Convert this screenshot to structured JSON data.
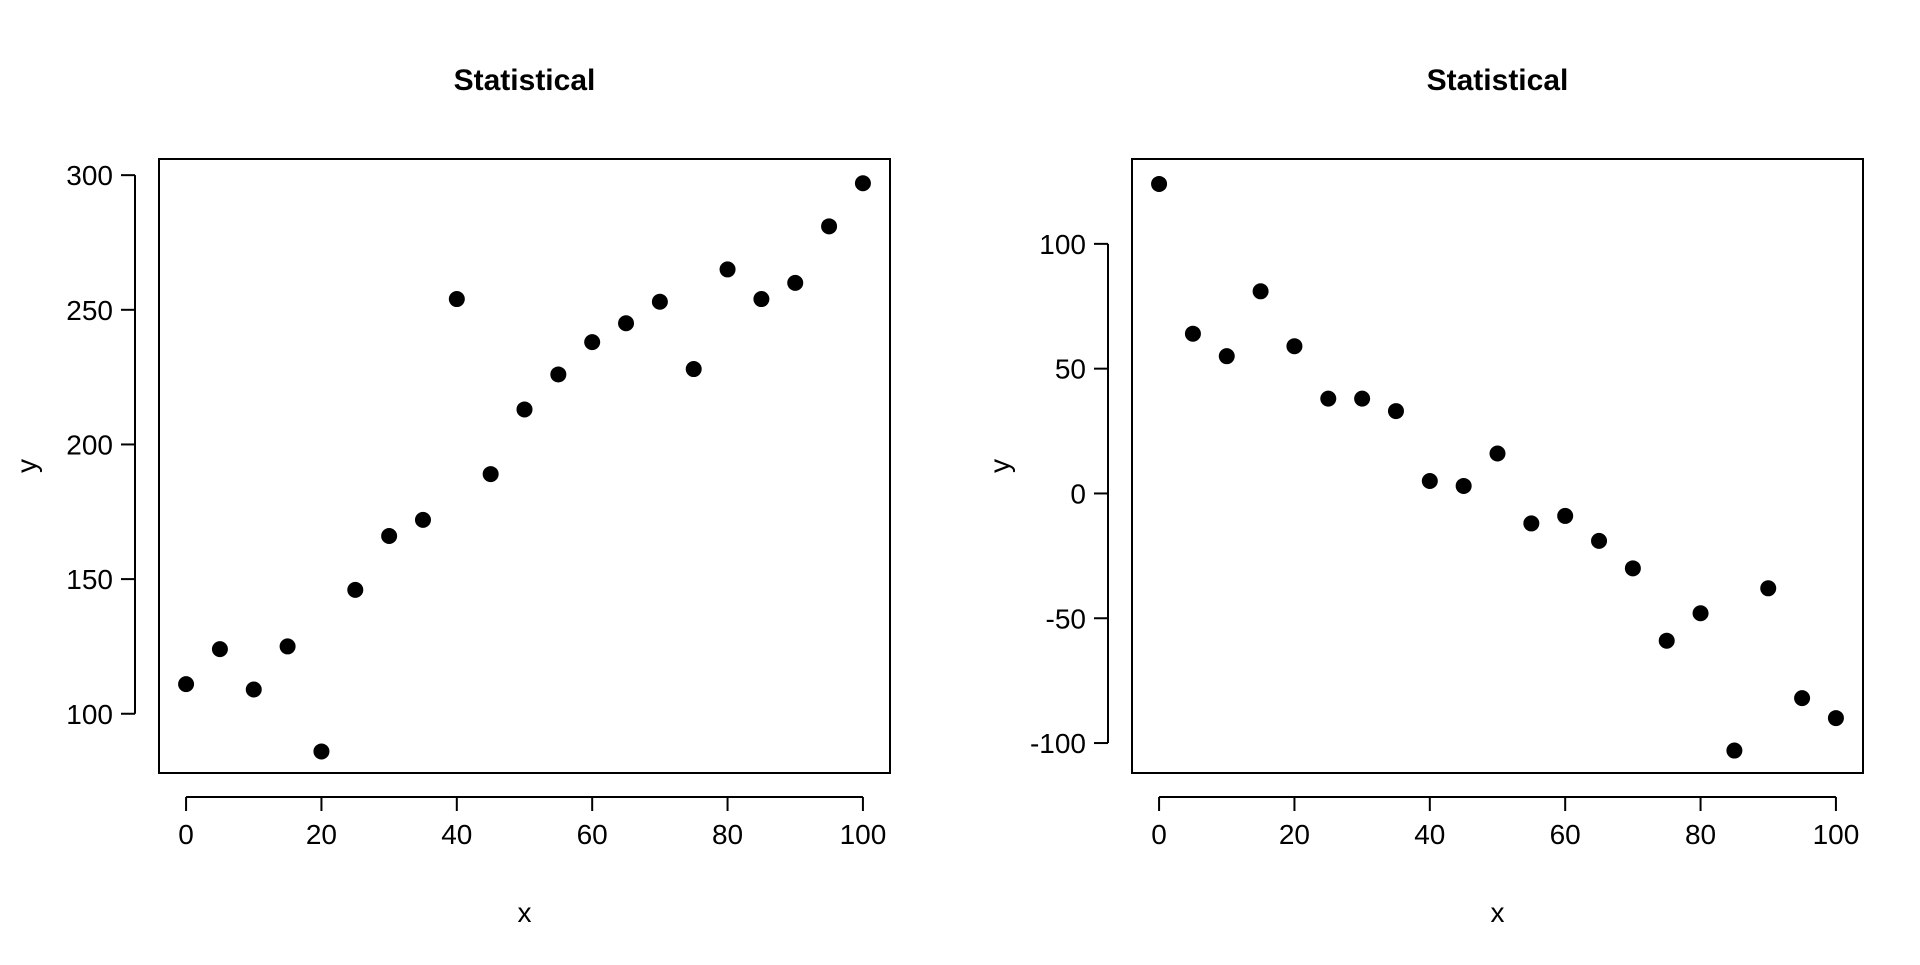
{
  "colors": {
    "background": "#ffffff",
    "axis": "#000000",
    "point": "#000000"
  },
  "chart_data": [
    {
      "type": "scatter",
      "title": "Statistical",
      "xlabel": "x",
      "ylabel": "y",
      "xlim": [
        -4,
        104
      ],
      "ylim": [
        78,
        306
      ],
      "xticks": [
        0,
        20,
        40,
        60,
        80,
        100
      ],
      "yticks": [
        100,
        150,
        200,
        250,
        300
      ],
      "grid": false,
      "x": [
        0,
        5,
        10,
        15,
        20,
        25,
        30,
        35,
        40,
        45,
        50,
        55,
        60,
        65,
        70,
        75,
        80,
        85,
        90,
        95,
        100
      ],
      "y": [
        111,
        124,
        109,
        125,
        86,
        146,
        166,
        172,
        254,
        189,
        213,
        226,
        238,
        245,
        253,
        228,
        265,
        254,
        260,
        281,
        297
      ]
    },
    {
      "type": "scatter",
      "title": "Statistical",
      "xlabel": "x",
      "ylabel": "y",
      "xlim": [
        -4,
        104
      ],
      "ylim": [
        -112,
        134
      ],
      "xticks": [
        0,
        20,
        40,
        60,
        80,
        100
      ],
      "yticks": [
        -100,
        -50,
        0,
        50,
        100
      ],
      "grid": false,
      "x": [
        0,
        5,
        10,
        15,
        20,
        25,
        30,
        35,
        40,
        45,
        50,
        55,
        60,
        65,
        70,
        75,
        80,
        85,
        90,
        95,
        100
      ],
      "y": [
        124,
        64,
        55,
        81,
        59,
        38,
        38,
        33,
        5,
        3,
        16,
        -12,
        -9,
        -19,
        -30,
        -59,
        -48,
        -103,
        -38,
        -82,
        -90
      ]
    }
  ]
}
